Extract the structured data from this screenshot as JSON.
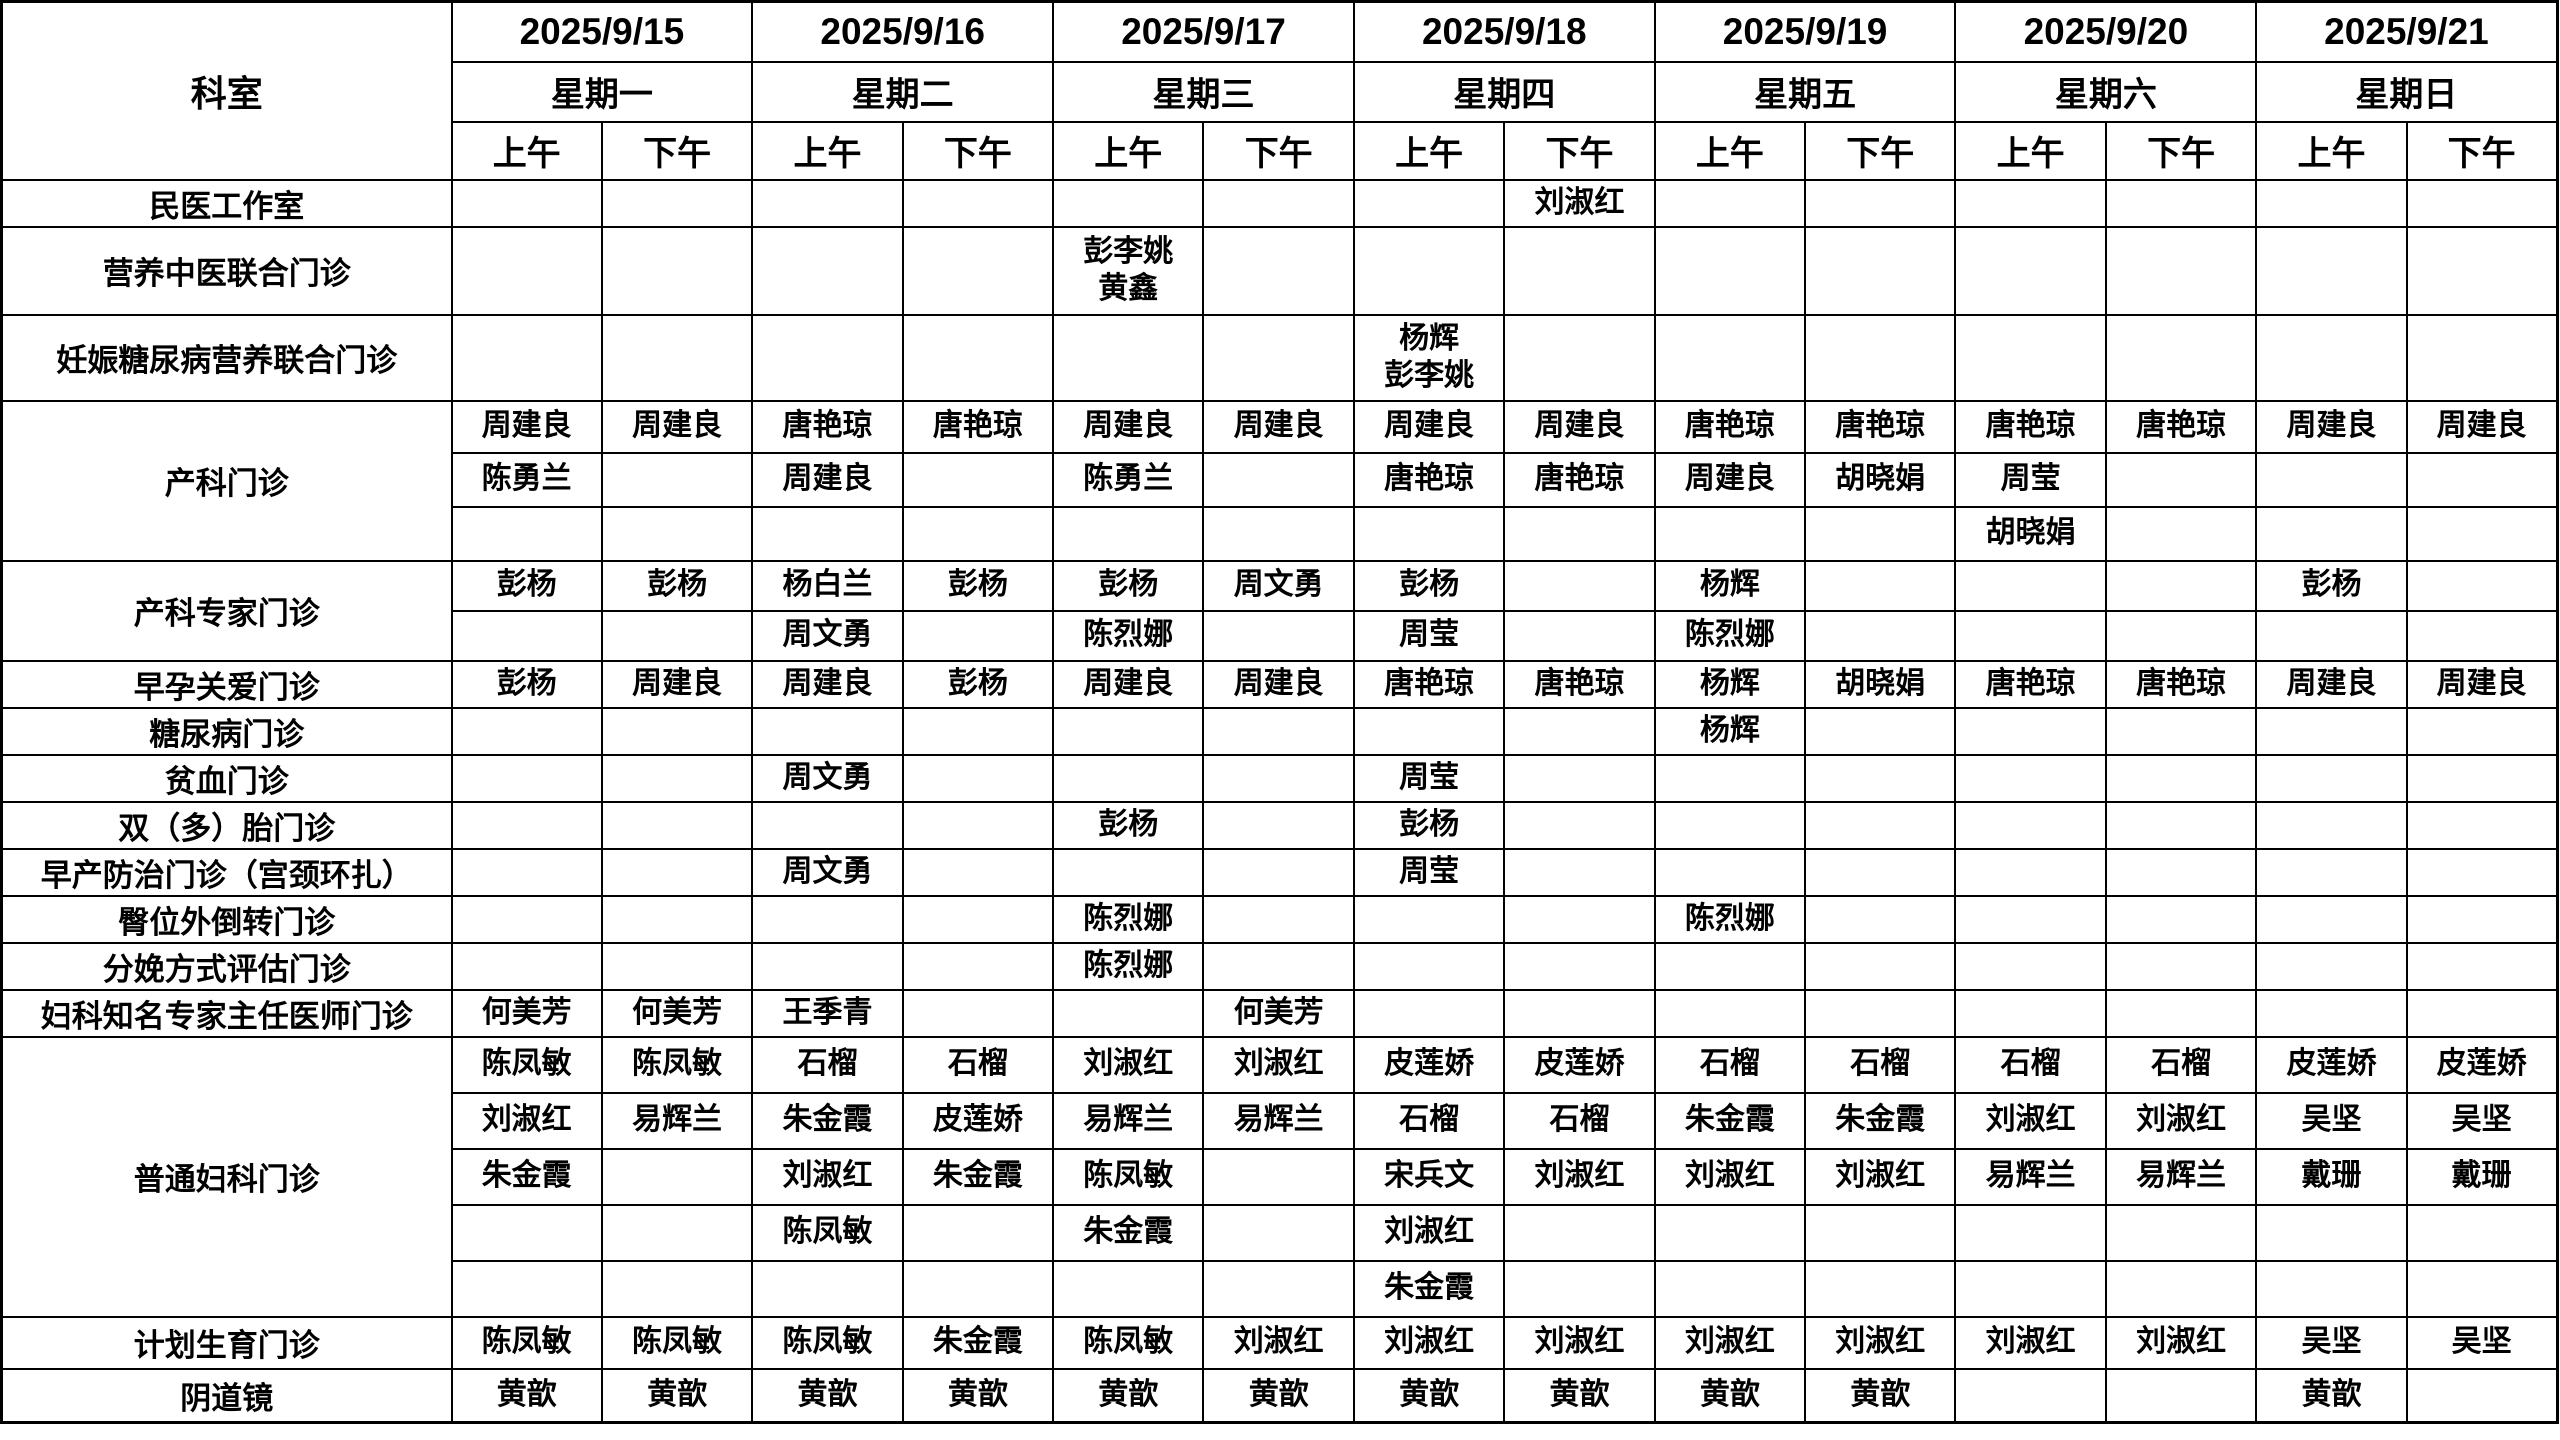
{
  "table": {
    "corner_label": "科室",
    "am_label": "上午",
    "pm_label": "下午",
    "days": [
      {
        "date": "2025/9/15",
        "weekday": "星期一"
      },
      {
        "date": "2025/9/16",
        "weekday": "星期二"
      },
      {
        "date": "2025/9/17",
        "weekday": "星期三"
      },
      {
        "date": "2025/9/18",
        "weekday": "星期四"
      },
      {
        "date": "2025/9/19",
        "weekday": "星期五"
      },
      {
        "date": "2025/9/20",
        "weekday": "星期六"
      },
      {
        "date": "2025/9/21",
        "weekday": "星期日"
      }
    ],
    "departments": [
      {
        "name": "民医工作室",
        "rows": [
          [
            "",
            "",
            "",
            "",
            "",
            "",
            "",
            "刘淑红",
            "",
            "",
            "",
            "",
            "",
            ""
          ]
        ]
      },
      {
        "name": "营养中医联合门诊",
        "rows": [
          [
            "",
            "",
            "",
            "",
            "彭李姚\n黄鑫",
            "",
            "",
            "",
            "",
            "",
            "",
            "",
            "",
            ""
          ]
        ]
      },
      {
        "name": "妊娠糖尿病营养联合门诊",
        "rows": [
          [
            "",
            "",
            "",
            "",
            "",
            "",
            "杨辉\n彭李姚",
            "",
            "",
            "",
            "",
            "",
            "",
            ""
          ]
        ]
      },
      {
        "name": "产科门诊",
        "rows": [
          [
            "周建良",
            "周建良",
            "唐艳琼",
            "唐艳琼",
            "周建良",
            "周建良",
            "周建良",
            "周建良",
            "唐艳琼",
            "唐艳琼",
            "唐艳琼",
            "唐艳琼",
            "周建良",
            "周建良"
          ],
          [
            "陈勇兰",
            "",
            "周建良",
            "",
            "陈勇兰",
            "",
            "唐艳琼",
            "唐艳琼",
            "周建良",
            "胡晓娟",
            "周莹",
            "",
            "",
            ""
          ],
          [
            "",
            "",
            "",
            "",
            "",
            "",
            "",
            "",
            "",
            "",
            "胡晓娟",
            "",
            "",
            ""
          ]
        ]
      },
      {
        "name": "产科专家门诊",
        "rows": [
          [
            "彭杨",
            "彭杨",
            "杨白兰",
            "彭杨",
            "彭杨",
            "周文勇",
            "彭杨",
            "",
            "杨辉",
            "",
            "",
            "",
            "彭杨",
            ""
          ],
          [
            "",
            "",
            "周文勇",
            "",
            "陈烈娜",
            "",
            "周莹",
            "",
            "陈烈娜",
            "",
            "",
            "",
            "",
            ""
          ]
        ]
      },
      {
        "name": "早孕关爱门诊",
        "rows": [
          [
            "彭杨",
            "周建良",
            "周建良",
            "彭杨",
            "周建良",
            "周建良",
            "唐艳琼",
            "唐艳琼",
            "杨辉",
            "胡晓娟",
            "唐艳琼",
            "唐艳琼",
            "周建良",
            "周建良"
          ]
        ]
      },
      {
        "name": "糖尿病门诊",
        "rows": [
          [
            "",
            "",
            "",
            "",
            "",
            "",
            "",
            "",
            "杨辉",
            "",
            "",
            "",
            "",
            ""
          ]
        ]
      },
      {
        "name": "贫血门诊",
        "rows": [
          [
            "",
            "",
            "周文勇",
            "",
            "",
            "",
            "周莹",
            "",
            "",
            "",
            "",
            "",
            "",
            ""
          ]
        ]
      },
      {
        "name": "双（多）胎门诊",
        "rows": [
          [
            "",
            "",
            "",
            "",
            "彭杨",
            "",
            "彭杨",
            "",
            "",
            "",
            "",
            "",
            "",
            ""
          ]
        ]
      },
      {
        "name": "早产防治门诊（宫颈环扎）",
        "rows": [
          [
            "",
            "",
            "周文勇",
            "",
            "",
            "",
            "周莹",
            "",
            "",
            "",
            "",
            "",
            "",
            ""
          ]
        ]
      },
      {
        "name": "臀位外倒转门诊",
        "rows": [
          [
            "",
            "",
            "",
            "",
            "陈烈娜",
            "",
            "",
            "",
            "陈烈娜",
            "",
            "",
            "",
            "",
            ""
          ]
        ]
      },
      {
        "name": "分娩方式评估门诊",
        "rows": [
          [
            "",
            "",
            "",
            "",
            "陈烈娜",
            "",
            "",
            "",
            "",
            "",
            "",
            "",
            "",
            ""
          ]
        ]
      },
      {
        "name": "妇科知名专家主任医师门诊",
        "rows": [
          [
            "何美芳",
            "何美芳",
            "王季青",
            "",
            "",
            "何美芳",
            "",
            "",
            "",
            "",
            "",
            "",
            "",
            ""
          ]
        ]
      },
      {
        "name": "普通妇科门诊",
        "rows": [
          [
            "陈凤敏",
            "陈凤敏",
            "石榴",
            "石榴",
            "刘淑红",
            "刘淑红",
            "皮莲娇",
            "皮莲娇",
            "石榴",
            "石榴",
            "石榴",
            "石榴",
            "皮莲娇",
            "皮莲娇"
          ],
          [
            "刘淑红",
            "易辉兰",
            "朱金霞",
            "皮莲娇",
            "易辉兰",
            "易辉兰",
            "石榴",
            "石榴",
            "朱金霞",
            "朱金霞",
            "刘淑红",
            "刘淑红",
            "吴坚",
            "吴坚"
          ],
          [
            "朱金霞",
            "",
            "刘淑红",
            "朱金霞",
            "陈凤敏",
            "",
            "宋兵文",
            "刘淑红",
            "刘淑红",
            "刘淑红",
            "易辉兰",
            "易辉兰",
            "戴珊",
            "戴珊"
          ],
          [
            "",
            "",
            "陈凤敏",
            "",
            "朱金霞",
            "",
            "刘淑红",
            "",
            "",
            "",
            "",
            "",
            "",
            ""
          ],
          [
            "",
            "",
            "",
            "",
            "",
            "",
            "朱金霞",
            "",
            "",
            "",
            "",
            "",
            "",
            ""
          ]
        ]
      },
      {
        "name": "计划生育门诊",
        "rows": [
          [
            "陈凤敏",
            "陈凤敏",
            "陈凤敏",
            "朱金霞",
            "陈凤敏",
            "刘淑红",
            "刘淑红",
            "刘淑红",
            "刘淑红",
            "刘淑红",
            "刘淑红",
            "刘淑红",
            "吴坚",
            "吴坚"
          ]
        ]
      },
      {
        "name": "阴道镜",
        "rows": [
          [
            "黄歆",
            "黄歆",
            "黄歆",
            "黄歆",
            "黄歆",
            "黄歆",
            "黄歆",
            "黄歆",
            "黄歆",
            "黄歆",
            "",
            "",
            "黄歆",
            ""
          ]
        ]
      }
    ]
  }
}
